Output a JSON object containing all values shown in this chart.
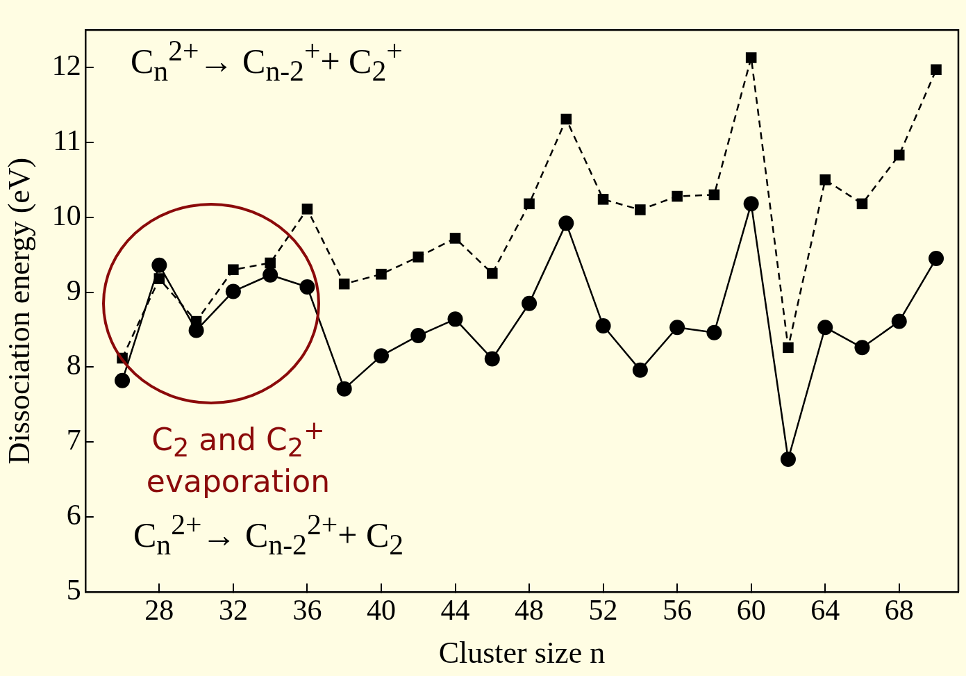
{
  "chart_data": {
    "type": "line",
    "xlabel": "Cluster size n",
    "ylabel": "Dissociation energy (eV)",
    "x": [
      26,
      28,
      30,
      32,
      34,
      36,
      38,
      40,
      42,
      44,
      46,
      48,
      50,
      52,
      54,
      56,
      58,
      60,
      62,
      64,
      66,
      68,
      70
    ],
    "series": [
      {
        "color": "#000000",
        "marker": "circle",
        "line_style": "solid",
        "values": [
          7.82,
          9.36,
          8.49,
          9.01,
          9.23,
          9.07,
          7.71,
          8.15,
          8.42,
          8.64,
          8.11,
          8.85,
          9.92,
          8.55,
          7.96,
          8.53,
          8.46,
          10.18,
          6.77,
          8.53,
          8.26,
          8.61,
          9.45
        ]
      },
      {
        "color": "#000000",
        "marker": "square",
        "line_style": "dashed",
        "values": [
          8.12,
          9.18,
          8.61,
          9.3,
          9.39,
          10.11,
          9.11,
          9.24,
          9.47,
          9.72,
          9.25,
          10.18,
          11.31,
          10.24,
          10.1,
          10.28,
          10.3,
          12.13,
          8.26,
          10.5,
          10.18,
          10.83,
          11.97
        ]
      }
    ],
    "xlim": [
      24,
      71.2
    ],
    "xticks": [
      28,
      32,
      36,
      40,
      44,
      48,
      52,
      56,
      60,
      64,
      68
    ],
    "ylim": [
      5,
      12.5
    ],
    "yticks": [
      5,
      6,
      7,
      8,
      9,
      10,
      11,
      12
    ],
    "grid": false,
    "legend": false,
    "annotations": [
      "C$_{n}$$^{2+}$→ C$_{n-2}$$^{+}$+ C$_{2}$$^{+}$",
      "C$_{2}$ and C$_{2}$$^{+}$ evaporation",
      "C$_{n}$$^{2+}$→ C$_{n-2}$$^{2+}$+ C$_{2}$"
    ]
  }
}
